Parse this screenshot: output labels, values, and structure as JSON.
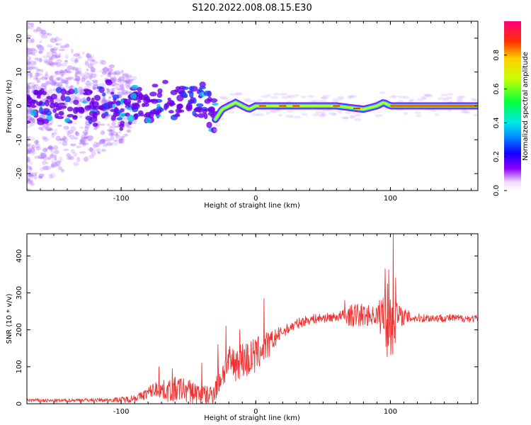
{
  "title": "S120.2022.008.08.15.E30",
  "chart_data": [
    {
      "type": "heatmap",
      "title": "S120.2022.008.08.15.E30",
      "xlabel": "Height of straight line (km)",
      "ylabel": "Frequency (Hz)",
      "xlim": [
        -170,
        165
      ],
      "ylim": [
        -25,
        25
      ],
      "x_ticks": [
        "-100",
        "0",
        "100"
      ],
      "y_ticks": [
        "-20",
        "-10",
        "0",
        "10",
        "20"
      ],
      "grid": false,
      "colorbar": {
        "label": "Normalized spectral amplitude",
        "range": [
          0,
          1
        ],
        "ticks": [
          "0.0",
          "0.2",
          "0.4",
          "0.6",
          "0.8"
        ]
      },
      "ridge": {
        "x": [
          -160,
          -150,
          -140,
          -130,
          -120,
          -110,
          -100,
          -90,
          -80,
          -70,
          -60,
          -50,
          -40,
          -35,
          -30,
          -25,
          -20,
          -15,
          -10,
          -5,
          0,
          20,
          40,
          60,
          80,
          90,
          95,
          100,
          120,
          140,
          165
        ],
        "y": [
          0,
          1,
          -1,
          2,
          -1,
          3,
          -2,
          1,
          -1,
          3,
          1,
          0,
          2,
          -1,
          -4,
          -1,
          0,
          1,
          0,
          -1,
          0,
          0,
          0,
          0,
          -1,
          0,
          1,
          0,
          0,
          0,
          0
        ]
      }
    },
    {
      "type": "line",
      "xlabel": "Height of straight line (km)",
      "ylabel": "SNR (10 * v/v)",
      "xlim": [
        -170,
        165
      ],
      "ylim": [
        0,
        460
      ],
      "x_ticks": [
        "-100",
        "0",
        "100"
      ],
      "y_ticks": [
        "0",
        "100",
        "200",
        "300",
        "400"
      ],
      "grid": false,
      "color": "#ee3333",
      "trend": {
        "x": [
          -170,
          -150,
          -130,
          -110,
          -95,
          -85,
          -75,
          -65,
          -55,
          -45,
          -35,
          -30,
          -25,
          -20,
          -15,
          -10,
          -5,
          0,
          5,
          10,
          15,
          20,
          25,
          30,
          35,
          40,
          50,
          60,
          70,
          80,
          90,
          95,
          100,
          105,
          110,
          120,
          140,
          165
        ],
        "y": [
          10,
          8,
          10,
          10,
          12,
          20,
          40,
          35,
          40,
          30,
          20,
          40,
          80,
          110,
          110,
          120,
          120,
          130,
          150,
          160,
          180,
          195,
          205,
          215,
          222,
          228,
          232,
          235,
          238,
          240,
          238,
          240,
          240,
          235,
          235,
          232,
          232,
          230
        ]
      },
      "noise": {
        "x": [
          -170,
          -110,
          -85,
          -60,
          -35,
          -20,
          -5,
          5,
          20,
          60,
          75,
          88,
          92,
          97,
          100,
          103,
          108,
          120,
          165
        ],
        "y": [
          5,
          5,
          12,
          35,
          30,
          45,
          55,
          45,
          15,
          12,
          35,
          25,
          45,
          110,
          150,
          80,
          25,
          12,
          10
        ]
      },
      "spikes": [
        {
          "x": -72,
          "y": 100
        },
        {
          "x": -62,
          "y": 95
        },
        {
          "x": -40,
          "y": 110
        },
        {
          "x": -28,
          "y": 160
        },
        {
          "x": -22,
          "y": 210
        },
        {
          "x": -12,
          "y": 200
        },
        {
          "x": 6,
          "y": 285
        },
        {
          "x": 66,
          "y": 280
        },
        {
          "x": 96,
          "y": 365
        },
        {
          "x": 102,
          "y": 460
        },
        {
          "x": 104,
          "y": 340
        }
      ]
    }
  ]
}
